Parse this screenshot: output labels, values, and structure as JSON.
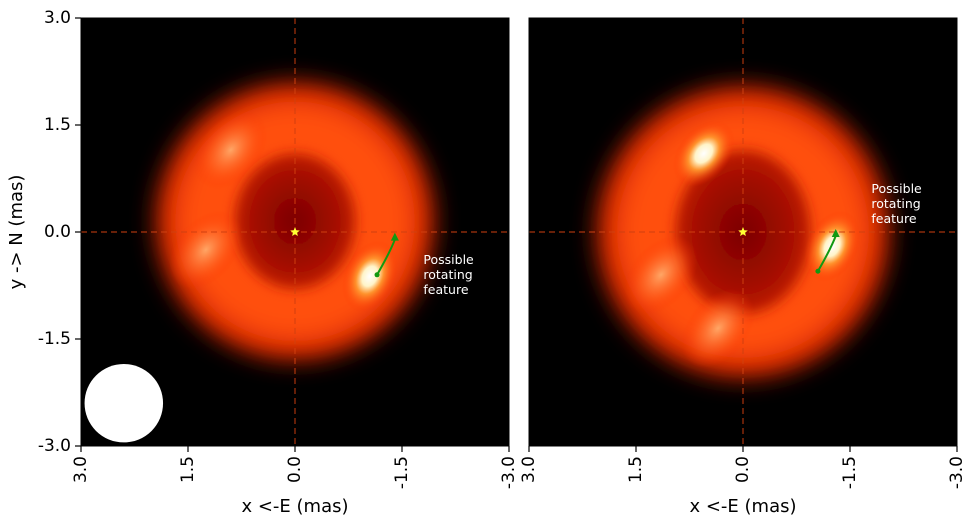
{
  "chart_data": [
    {
      "type": "heatmap",
      "title": "",
      "xlabel": "x <-E (mas)",
      "ylabel": "y -> N (mas)",
      "xlim": [
        3.0,
        -3.0
      ],
      "ylim": [
        -3.0,
        3.0
      ],
      "xticks": [
        "3.0",
        "1.5",
        "0.0",
        "-1.5",
        "-3.0"
      ],
      "yticks": [
        "3.0",
        "1.5",
        "0.0",
        "-1.5",
        "-3.0"
      ],
      "xtick_values": [
        3.0,
        1.5,
        0.0,
        -1.5,
        -3.0
      ],
      "ytick_values": [
        3.0,
        1.5,
        0.0,
        -1.5,
        -3.0
      ],
      "colormap": "hot",
      "background_color": "#000000",
      "center_star": {
        "x": 0.0,
        "y": 0.0,
        "color": "#ffff33"
      },
      "crosshair_color": "#d04010",
      "ring": {
        "x": 0.0,
        "y": 0.15,
        "outer_radius": 1.95,
        "inner_radius_x": 0.85,
        "inner_radius_y": 0.95
      },
      "bright_spots": [
        {
          "x": -1.05,
          "y": -0.62,
          "intensity": 1.0
        },
        {
          "x": 0.9,
          "y": 1.15,
          "intensity": 0.5
        },
        {
          "x": 1.25,
          "y": -0.25,
          "intensity": 0.35
        }
      ],
      "arrow": {
        "x_from": -1.15,
        "y_from": -0.6,
        "x_to": -1.4,
        "y_to": -0.05,
        "color": "#119911"
      },
      "annotation": {
        "text": [
          "Possible",
          "rotating",
          "feature"
        ],
        "x": -1.8,
        "y": -0.45
      },
      "beam": {
        "x": 2.4,
        "y": -2.4,
        "radius": 0.55,
        "color": "#ffffff"
      }
    },
    {
      "type": "heatmap",
      "title": "",
      "xlabel": "x <-E (mas)",
      "ylabel": "",
      "xlim": [
        3.0,
        -3.0
      ],
      "ylim": [
        -3.0,
        3.0
      ],
      "xticks": [
        "3.0",
        "1.5",
        "0.0",
        "-1.5",
        "-3.0"
      ],
      "xtick_values": [
        3.0,
        1.5,
        0.0,
        -1.5,
        -3.0
      ],
      "colormap": "hot",
      "background_color": "#000000",
      "center_star": {
        "x": 0.0,
        "y": 0.0,
        "color": "#ffff33"
      },
      "crosshair_color": "#d04010",
      "ring": {
        "x": 0.0,
        "y": 0.0,
        "outer_radius": 2.05,
        "inner_radius_x": 0.95,
        "inner_radius_y": 1.15
      },
      "bright_spots": [
        {
          "x": 0.55,
          "y": 1.1,
          "intensity": 1.0
        },
        {
          "x": -1.25,
          "y": -0.2,
          "intensity": 1.0
        },
        {
          "x": 1.15,
          "y": -0.6,
          "intensity": 0.4
        },
        {
          "x": 0.35,
          "y": -1.35,
          "intensity": 0.35
        }
      ],
      "arrow": {
        "x_from": -1.05,
        "y_from": -0.55,
        "x_to": -1.3,
        "y_to": 0.0,
        "color": "#119911"
      },
      "annotation": {
        "text": [
          "Possible",
          "rotating",
          "feature"
        ],
        "x": -1.8,
        "y": 0.55
      }
    }
  ]
}
